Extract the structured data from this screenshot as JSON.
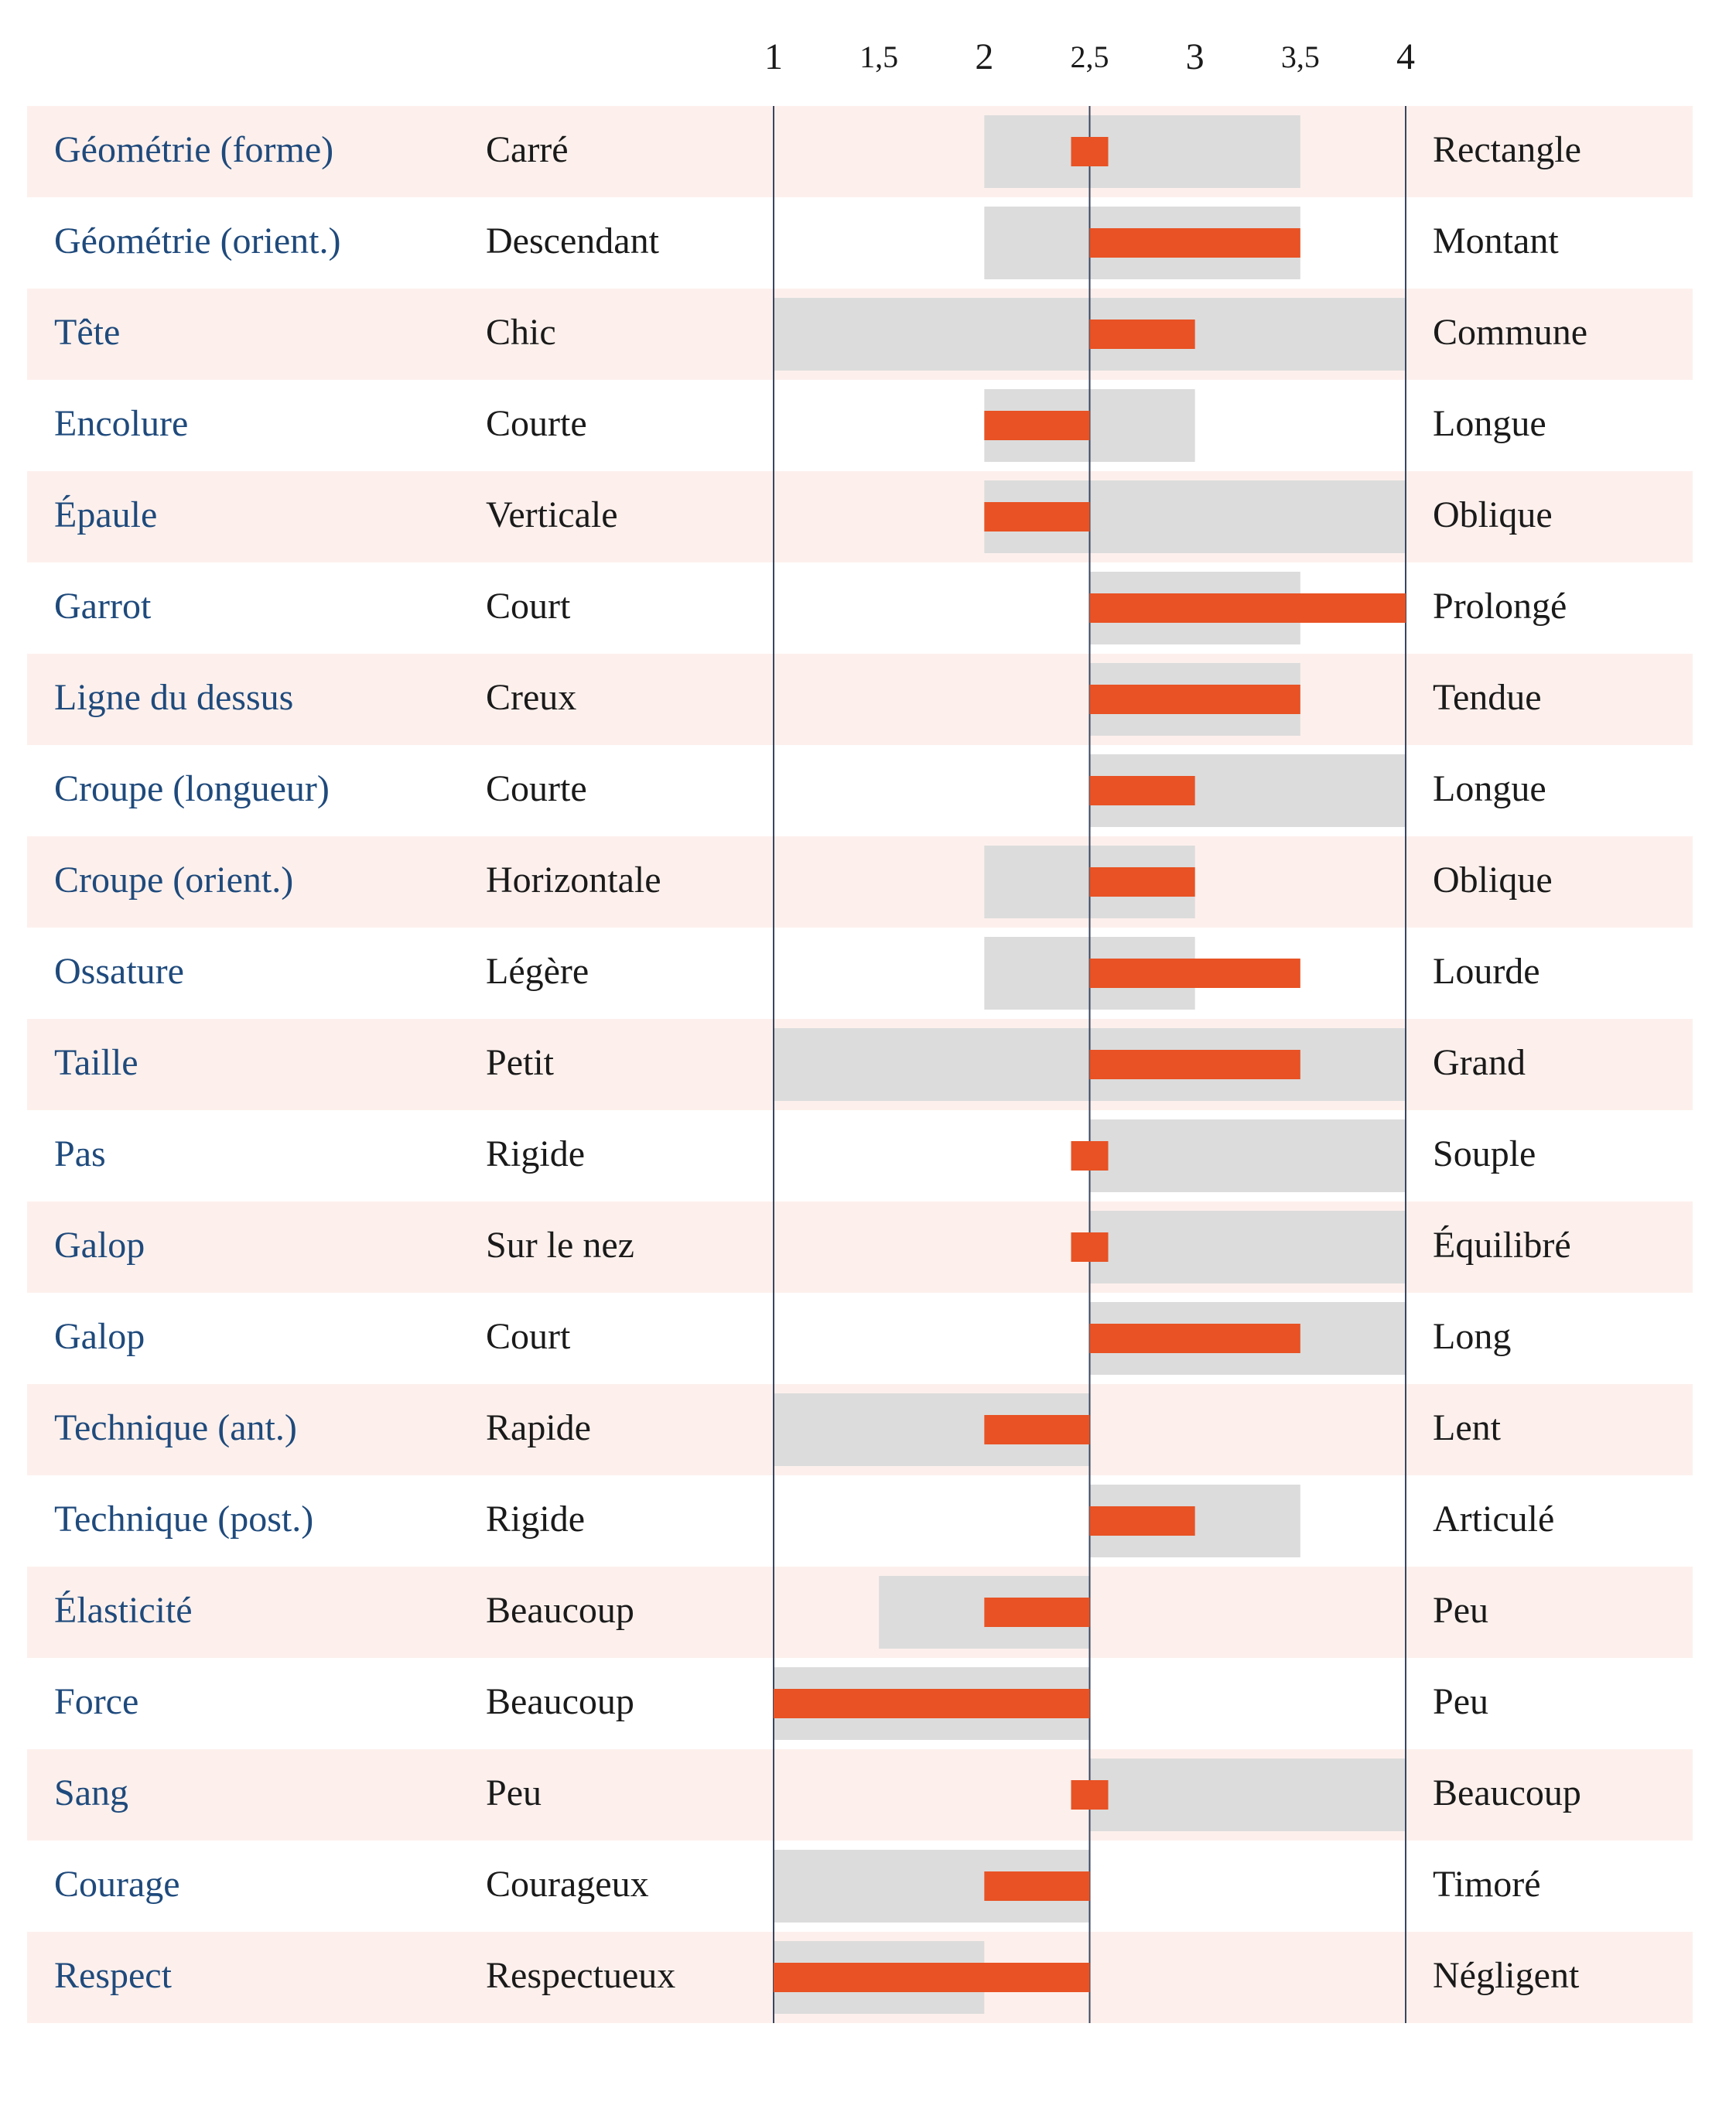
{
  "chart_data": {
    "type": "bar",
    "x_axis": {
      "ticks": [
        1,
        1.5,
        2,
        2.5,
        3,
        3.5,
        4
      ],
      "tick_labels": [
        "1",
        "1,5",
        "2",
        "2,5",
        "3",
        "3,5",
        "4"
      ],
      "range": [
        1,
        4
      ],
      "reference_value": 2.5
    },
    "grid": false,
    "row_shading": "alternating",
    "series": [
      {
        "kind": "range"
      },
      {
        "kind": "value"
      }
    ],
    "rows": [
      {
        "trait": "Géométrie (forme)",
        "low": "Carré",
        "high": "Rectangle",
        "range": [
          2,
          3.5
        ],
        "value": 2.5
      },
      {
        "trait": "Géométrie (orient.)",
        "low": "Descendant",
        "high": "Montant",
        "range": [
          2,
          3.5
        ],
        "value": 3.5
      },
      {
        "trait": "Tête",
        "low": "Chic",
        "high": "Commune",
        "range": [
          1,
          4
        ],
        "value": 3
      },
      {
        "trait": "Encolure",
        "low": "Courte",
        "high": "Longue",
        "range": [
          2,
          3
        ],
        "value": 2
      },
      {
        "trait": "Épaule",
        "low": "Verticale",
        "high": "Oblique",
        "range": [
          2,
          4
        ],
        "value": 2
      },
      {
        "trait": "Garrot",
        "low": "Court",
        "high": "Prolongé",
        "range": [
          2.5,
          3.5
        ],
        "value": 4
      },
      {
        "trait": "Ligne du dessus",
        "low": "Creux",
        "high": "Tendue",
        "range": [
          2.5,
          3.5
        ],
        "value": 3.5
      },
      {
        "trait": "Croupe (longueur)",
        "low": "Courte",
        "high": "Longue",
        "range": [
          2.5,
          4
        ],
        "value": 3
      },
      {
        "trait": "Croupe (orient.)",
        "low": "Horizontale",
        "high": "Oblique",
        "range": [
          2,
          3
        ],
        "value": 3
      },
      {
        "trait": "Ossature",
        "low": "Légère",
        "high": "Lourde",
        "range": [
          2,
          3
        ],
        "value": 3.5
      },
      {
        "trait": "Taille",
        "low": "Petit",
        "high": "Grand",
        "range": [
          1,
          4
        ],
        "value": 3.5
      },
      {
        "trait": "Pas",
        "low": "Rigide",
        "high": "Souple",
        "range": [
          2.5,
          4
        ],
        "value": 2.5
      },
      {
        "trait": "Galop",
        "low": "Sur le nez",
        "high": "Équilibré",
        "range": [
          2.5,
          4
        ],
        "value": 2.5
      },
      {
        "trait": "Galop",
        "low": "Court",
        "high": "Long",
        "range": [
          2.5,
          4
        ],
        "value": 3.5
      },
      {
        "trait": "Technique (ant.)",
        "low": "Rapide",
        "high": "Lent",
        "range": [
          1,
          2.5
        ],
        "value": 2
      },
      {
        "trait": "Technique (post.)",
        "low": "Rigide",
        "high": "Articulé",
        "range": [
          2.5,
          3.5
        ],
        "value": 3
      },
      {
        "trait": "Élasticité",
        "low": "Beaucoup",
        "high": "Peu",
        "range": [
          1.5,
          2.5
        ],
        "value": 2
      },
      {
        "trait": "Force",
        "low": "Beaucoup",
        "high": "Peu",
        "range": [
          1,
          2.5
        ],
        "value": 1
      },
      {
        "trait": "Sang",
        "low": "Peu",
        "high": "Beaucoup",
        "range": [
          2.5,
          4
        ],
        "value": 2.5
      },
      {
        "trait": "Courage",
        "low": "Courageux",
        "high": "Timoré",
        "range": [
          1,
          2.5
        ],
        "value": 2
      },
      {
        "trait": "Respect",
        "low": "Respectueux",
        "high": "Négligent",
        "range": [
          1,
          2
        ],
        "value": 1
      }
    ]
  },
  "colors": {
    "row_shade": "#fdf0ec",
    "range_bar": "#dcdcdc",
    "value_bar": "#e85224",
    "trait_text": "#1f4a7c",
    "label_text": "#1a1a1a",
    "axis_line": "#3a4660"
  }
}
